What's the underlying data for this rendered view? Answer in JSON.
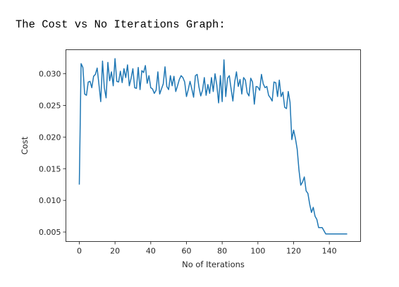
{
  "heading": "The Cost vs No Iterations Graph:",
  "chart_data": {
    "type": "line",
    "title": "",
    "xlabel": "No of Iterations",
    "ylabel": "Cost",
    "xlim": [
      -7.5,
      157.5
    ],
    "ylim": [
      0.0035,
      0.0338
    ],
    "xticks": [
      0,
      20,
      40,
      60,
      80,
      100,
      120,
      140
    ],
    "yticks": [
      0.005,
      0.01,
      0.015,
      0.02,
      0.025,
      0.03
    ],
    "ytick_labels": [
      "0.005",
      "0.010",
      "0.015",
      "0.020",
      "0.025",
      "0.030"
    ],
    "grid": false,
    "line_color": "#1f77b4",
    "series": [
      {
        "values": [
          0.0125,
          0.0316,
          0.031,
          0.0268,
          0.0266,
          0.0287,
          0.0288,
          0.0278,
          0.0296,
          0.0299,
          0.0309,
          0.0283,
          0.0256,
          0.032,
          0.0278,
          0.0262,
          0.0318,
          0.0289,
          0.0303,
          0.0281,
          0.0324,
          0.0288,
          0.0287,
          0.0304,
          0.0286,
          0.0308,
          0.0294,
          0.0314,
          0.0281,
          0.0293,
          0.0308,
          0.0278,
          0.0277,
          0.031,
          0.0275,
          0.0305,
          0.0302,
          0.0313,
          0.0285,
          0.0297,
          0.0278,
          0.0276,
          0.0269,
          0.0274,
          0.0303,
          0.0268,
          0.0276,
          0.0284,
          0.0311,
          0.028,
          0.0275,
          0.0297,
          0.0281,
          0.0296,
          0.0272,
          0.0281,
          0.0291,
          0.0297,
          0.0294,
          0.0287,
          0.0264,
          0.0275,
          0.0288,
          0.0276,
          0.0263,
          0.0297,
          0.0299,
          0.0279,
          0.0265,
          0.0274,
          0.0294,
          0.0266,
          0.0283,
          0.0269,
          0.0294,
          0.0272,
          0.03,
          0.0282,
          0.0254,
          0.0297,
          0.0256,
          0.0322,
          0.0264,
          0.0293,
          0.0297,
          0.0276,
          0.0257,
          0.0287,
          0.0303,
          0.028,
          0.0291,
          0.0268,
          0.0294,
          0.029,
          0.027,
          0.0265,
          0.0293,
          0.0287,
          0.0252,
          0.028,
          0.0279,
          0.0274,
          0.0299,
          0.0284,
          0.0278,
          0.028,
          0.0266,
          0.0262,
          0.0257,
          0.0287,
          0.0286,
          0.0264,
          0.029,
          0.0264,
          0.0271,
          0.0247,
          0.0245,
          0.0272,
          0.0255,
          0.0196,
          0.0211,
          0.0198,
          0.0181,
          0.0148,
          0.0124,
          0.0129,
          0.0137,
          0.0115,
          0.0111,
          0.0094,
          0.0081,
          0.0089,
          0.0075,
          0.007,
          0.0057,
          0.0057,
          0.0057,
          0.0052,
          0.0047,
          0.0047,
          0.0047,
          0.0047,
          0.0047,
          0.0047,
          0.0047,
          0.0047,
          0.0047,
          0.0047,
          0.0047,
          0.0047,
          0.0047
        ]
      }
    ]
  }
}
